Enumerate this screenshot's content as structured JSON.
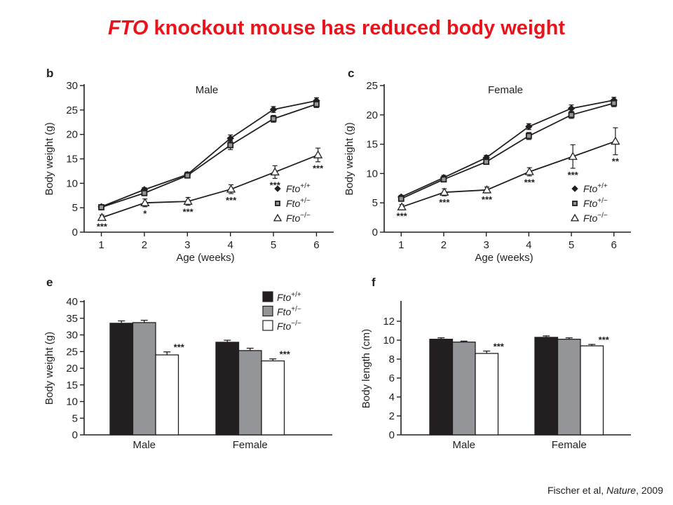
{
  "slide": {
    "title_italic": "FTO",
    "title_rest": " knockout mouse has reduced body weight",
    "title_color": "#e8141b",
    "citation_pre": "Fischer et al, ",
    "citation_journal": "Nature",
    "citation_post": ", 2009"
  },
  "series_styles": {
    "wt": {
      "color": "#231f20",
      "marker": "diamond"
    },
    "het": {
      "color": "#939598",
      "marker": "square"
    },
    "ko": {
      "color": "#ffffff",
      "marker": "triangle"
    }
  },
  "chart_data": [
    {
      "panel": "b",
      "type": "line",
      "title": "Male",
      "xlabel": "Age (weeks)",
      "ylabel": "Body weight (g)",
      "x": [
        1,
        2,
        3,
        4,
        5,
        6
      ],
      "xlim": [
        0.6,
        6.4
      ],
      "ylim": [
        0,
        30
      ],
      "yticks": [
        0,
        5,
        10,
        15,
        20,
        25,
        30
      ],
      "legend": {
        "placement": "right",
        "labels": [
          {
            "base": "Fto",
            "sup": "+/+"
          },
          {
            "base": "Fto",
            "sup": "+/−"
          },
          {
            "base": "Fto",
            "sup": "−/−"
          }
        ]
      },
      "series": [
        {
          "key": "wt",
          "values": [
            5.2,
            8.7,
            11.8,
            19.2,
            25.1,
            26.9
          ],
          "err": [
            0.3,
            0.4,
            0.5,
            0.7,
            0.6,
            0.6
          ]
        },
        {
          "key": "het",
          "values": [
            5.1,
            8.0,
            11.6,
            17.8,
            23.2,
            26.2
          ],
          "err": [
            0.3,
            0.4,
            0.5,
            0.9,
            0.7,
            0.7
          ]
        },
        {
          "key": "ko",
          "values": [
            3.0,
            6.0,
            6.3,
            8.8,
            12.3,
            15.8
          ],
          "err": [
            0.5,
            0.8,
            0.8,
            0.9,
            1.3,
            1.4
          ]
        }
      ],
      "significance": [
        "***",
        "*",
        "***",
        "***",
        "***",
        "***"
      ]
    },
    {
      "panel": "c",
      "type": "line",
      "title": "Female",
      "xlabel": "Age (weeks)",
      "ylabel": "Body weight (g)",
      "x": [
        1,
        2,
        3,
        4,
        5,
        6
      ],
      "xlim": [
        0.6,
        6.4
      ],
      "ylim": [
        0,
        25
      ],
      "yticks": [
        0,
        5,
        10,
        15,
        20,
        25
      ],
      "legend": {
        "placement": "right",
        "labels": [
          {
            "base": "Fto",
            "sup": "+/+"
          },
          {
            "base": "Fto",
            "sup": "+/−"
          },
          {
            "base": "Fto",
            "sup": "−/−"
          }
        ]
      },
      "series": [
        {
          "key": "wt",
          "values": [
            6.0,
            9.3,
            12.7,
            18.0,
            21.1,
            22.5
          ],
          "err": [
            0.3,
            0.4,
            0.4,
            0.5,
            0.6,
            0.5
          ]
        },
        {
          "key": "het",
          "values": [
            5.7,
            9.0,
            12.0,
            16.4,
            20.0,
            22.0
          ],
          "err": [
            0.3,
            0.4,
            0.4,
            0.6,
            0.6,
            0.6
          ]
        },
        {
          "key": "ko",
          "values": [
            4.3,
            6.8,
            7.2,
            10.3,
            12.9,
            15.5
          ],
          "err": [
            0.4,
            0.6,
            0.5,
            0.7,
            2.0,
            2.3
          ]
        }
      ],
      "significance": [
        "***",
        "***",
        "***",
        "***",
        "***",
        "**"
      ]
    },
    {
      "panel": "e",
      "type": "bar",
      "ylabel": "Body weight (g)",
      "categories": [
        "Male",
        "Female"
      ],
      "ylim": [
        0,
        40
      ],
      "yticks": [
        0,
        5,
        10,
        15,
        20,
        25,
        30,
        35,
        40
      ],
      "legend": {
        "placement": "top-right",
        "labels": [
          {
            "base": "Fto",
            "sup": "+/+"
          },
          {
            "base": "Fto",
            "sup": "+/−"
          },
          {
            "base": "Fto",
            "sup": "−/−"
          }
        ]
      },
      "series": [
        {
          "key": "wt",
          "values": [
            33.5,
            27.8
          ],
          "err": [
            0.7,
            0.6
          ]
        },
        {
          "key": "het",
          "values": [
            33.7,
            25.3
          ],
          "err": [
            0.7,
            0.7
          ]
        },
        {
          "key": "ko",
          "values": [
            24.0,
            22.2
          ],
          "err": [
            0.9,
            0.6
          ]
        }
      ],
      "significance": [
        "***",
        "***"
      ]
    },
    {
      "panel": "f",
      "type": "bar",
      "ylabel": "Body length (cm)",
      "categories": [
        "Male",
        "Female"
      ],
      "ylim": [
        0,
        14
      ],
      "yticks": [
        0,
        2,
        4,
        6,
        8,
        10,
        12
      ],
      "series": [
        {
          "key": "wt",
          "values": [
            10.1,
            10.3
          ],
          "err": [
            0.15,
            0.15
          ]
        },
        {
          "key": "het",
          "values": [
            9.8,
            10.1
          ],
          "err": [
            0.1,
            0.15
          ]
        },
        {
          "key": "ko",
          "values": [
            8.6,
            9.4
          ],
          "err": [
            0.25,
            0.15
          ]
        }
      ],
      "significance": [
        "***",
        "***"
      ]
    }
  ]
}
